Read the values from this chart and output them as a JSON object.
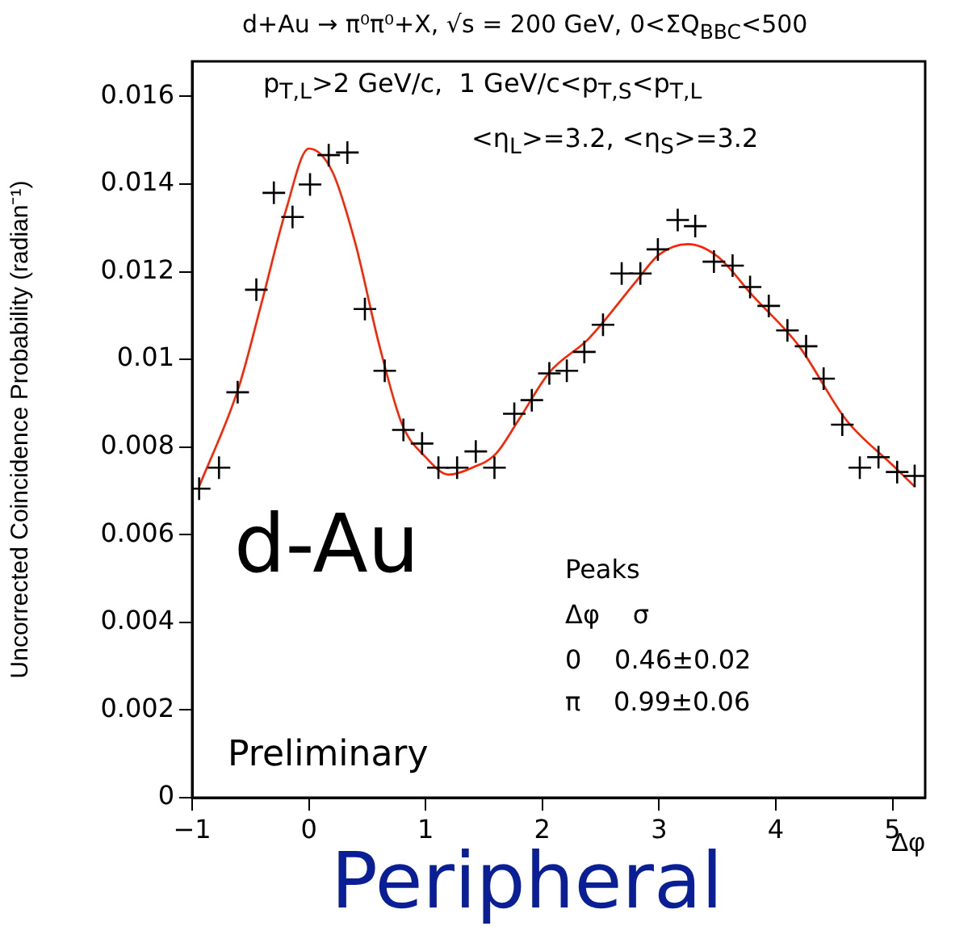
{
  "chart_data": {
    "type": "scatter",
    "title": "d+Au → π⁰π⁰+X, √s = 200 GeV, 0<ΣQ$_{BBC}$<500",
    "xlabel": "Δφ",
    "ylabel": "Uncorrected Coincidence Probability (radian⁻¹)",
    "x": [
      -0.94,
      -0.77,
      -0.61,
      -0.45,
      -0.3,
      -0.14,
      0.01,
      0.17,
      0.33,
      0.48,
      0.65,
      0.81,
      0.97,
      1.11,
      1.27,
      1.43,
      1.59,
      1.76,
      1.91,
      2.06,
      2.21,
      2.36,
      2.52,
      2.68,
      2.84,
      2.99,
      3.16,
      3.31,
      3.47,
      3.63,
      3.78,
      3.94,
      4.1,
      4.26,
      4.41,
      4.57,
      4.72,
      4.88,
      5.04,
      5.19
    ],
    "series": [
      {
        "color": "#000000",
        "marker": "cross",
        "values": [
          0.00705,
          0.00753,
          0.00925,
          0.01159,
          0.0138,
          0.01325,
          0.01399,
          0.01466,
          0.01472,
          0.01115,
          0.00974,
          0.00839,
          0.00808,
          0.00753,
          0.00753,
          0.0079,
          0.00753,
          0.00876,
          0.00907,
          0.00968,
          0.00974,
          0.01017,
          0.01079,
          0.01196,
          0.01196,
          0.01251,
          0.01318,
          0.01304,
          0.01223,
          0.01214,
          0.01165,
          0.01122,
          0.01066,
          0.0103,
          0.00956,
          0.00851,
          0.00753,
          0.00777,
          0.00743,
          0.00734
        ]
      },
      {
        "type": "line",
        "color": "#ff2200",
        "line_style": "solid",
        "x": [
          -0.94,
          -0.6,
          -0.4,
          -0.2,
          0,
          0.2,
          0.4,
          0.6,
          0.8,
          1.0,
          1.2,
          1.4,
          1.6,
          1.8,
          2.06,
          2.4,
          2.8,
          3.0,
          3.25,
          3.5,
          3.8,
          4.2,
          4.6,
          5.0,
          5.19
        ],
        "values": [
          0.0071,
          0.00937,
          0.01134,
          0.01337,
          0.01481,
          0.01429,
          0.01263,
          0.01036,
          0.00851,
          0.00777,
          0.00737,
          0.00753,
          0.00784,
          0.00863,
          0.0097,
          0.01048,
          0.01177,
          0.01239,
          0.01263,
          0.01235,
          0.01146,
          0.0103,
          0.00863,
          0.00759,
          0.0071
        ]
      }
    ],
    "xlim": [
      -1,
      5.28
    ],
    "xticks": [
      -1,
      0,
      1,
      2,
      3,
      4,
      5
    ],
    "ylim": [
      0,
      0.0168
    ],
    "yticks": [
      0,
      0.002,
      0.004,
      0.006,
      0.008,
      0.01,
      0.012,
      0.014,
      0.016
    ],
    "grid": false,
    "legend": false,
    "annotations": [
      "p$_{T,L}$>2 GeV/c,  1 GeV/c<p$_{T,S}$<p$_{T,L}$",
      "<η$_{L}$>=3.2, <η$_{S}$>=3.2",
      "d-Au",
      "Peaks",
      "Δφ    σ",
      "0    0.46±0.02",
      "π    0.99±0.06",
      "Preliminary",
      "Peripheral"
    ]
  }
}
